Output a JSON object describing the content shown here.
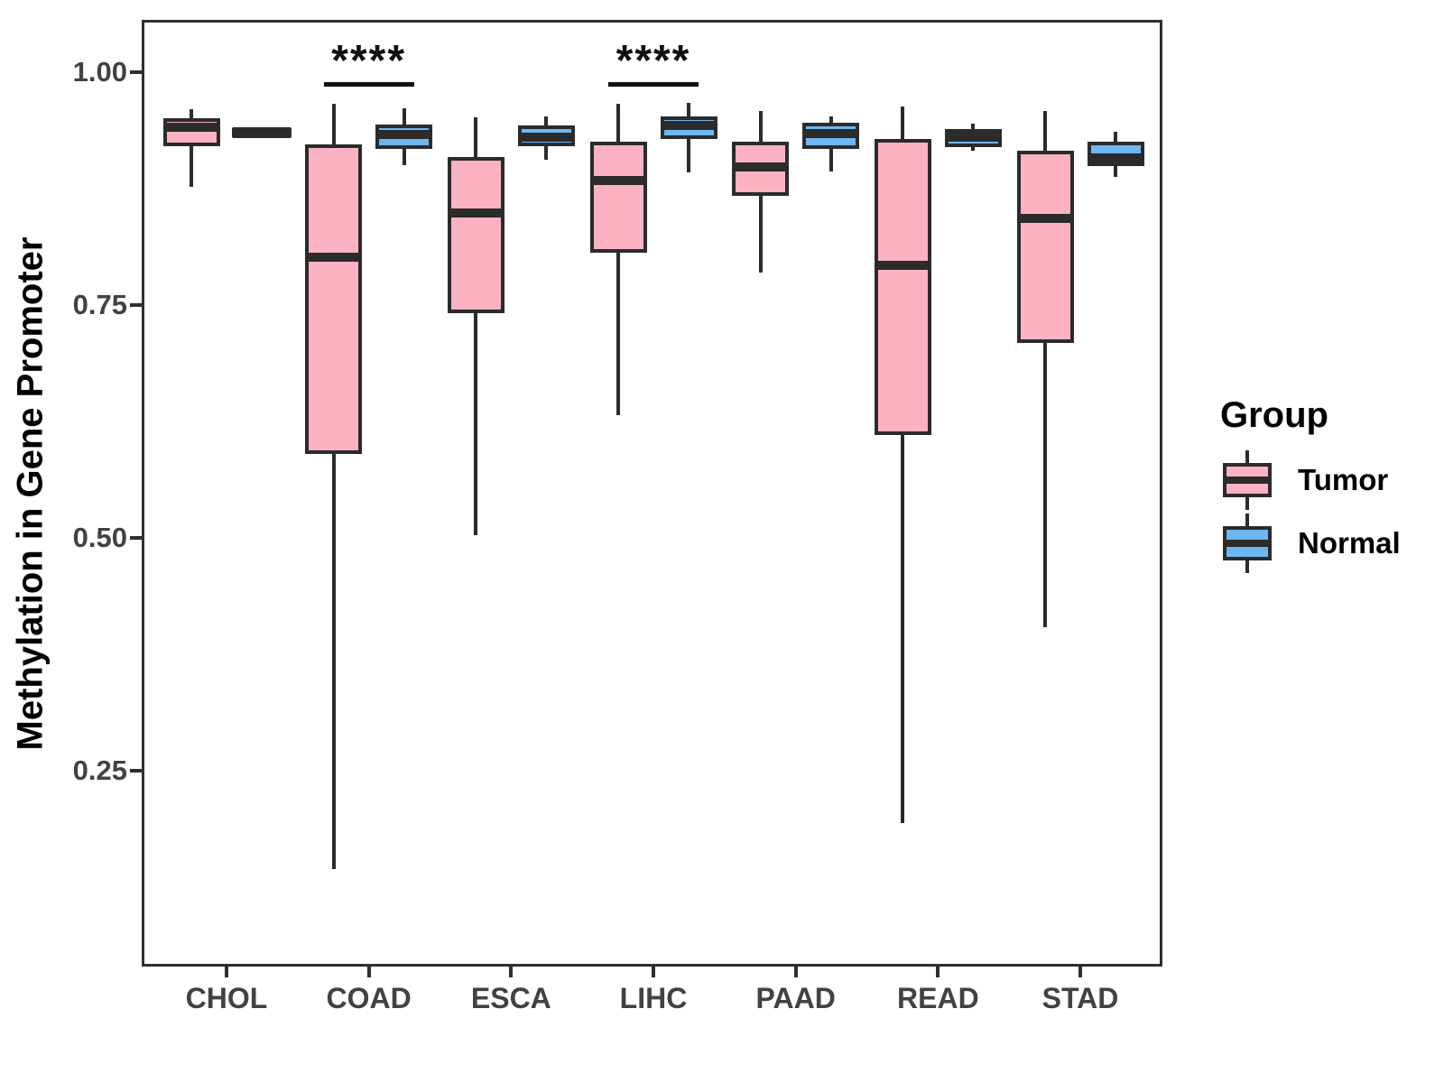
{
  "figure": {
    "background": "#ffffff"
  },
  "legend": {
    "title": "Group",
    "entries": [
      {
        "label": "Tumor",
        "color": "#FBB2C2"
      },
      {
        "label": "Normal",
        "color": "#6EB7F2"
      }
    ]
  },
  "chart_data": {
    "type": "boxplot",
    "title": "",
    "xlabel": "",
    "ylabel": "Methylation in Gene Promoter",
    "ylim": [
      0.03,
      1.06
    ],
    "grid": false,
    "legend_position": "right",
    "yticks": [
      {
        "label": "1.00",
        "value": 1.0
      },
      {
        "label": "0.75",
        "value": 0.75
      },
      {
        "label": "0.50",
        "value": 0.5
      },
      {
        "label": "0.25",
        "value": 0.25
      }
    ],
    "categories": [
      "CHOL",
      "COAD",
      "ESCA",
      "LIHC",
      "PAAD",
      "READ",
      "STAD"
    ],
    "groups": [
      "Tumor",
      "Normal"
    ],
    "colors": {
      "Tumor": "#FBB2C2",
      "Normal": "#6EB7F2",
      "stroke": "#2b2b2b"
    },
    "series": [
      {
        "name": "Tumor",
        "boxes": [
          {
            "category": "CHOL",
            "whisker_low": 0.877,
            "q1": 0.921,
            "median": 0.941,
            "q3": 0.951,
            "whisker_high": 0.96
          },
          {
            "category": "COAD",
            "whisker_low": 0.144,
            "q1": 0.59,
            "median": 0.801,
            "q3": 0.922,
            "whisker_high": 0.966
          },
          {
            "category": "ESCA",
            "whisker_low": 0.503,
            "q1": 0.741,
            "median": 0.849,
            "q3": 0.909,
            "whisker_high": 0.952
          },
          {
            "category": "LIHC",
            "whisker_low": 0.632,
            "q1": 0.806,
            "median": 0.884,
            "q3": 0.925,
            "whisker_high": 0.966
          },
          {
            "category": "PAAD",
            "whisker_low": 0.785,
            "q1": 0.867,
            "median": 0.898,
            "q3": 0.925,
            "whisker_high": 0.958
          },
          {
            "category": "READ",
            "whisker_low": 0.194,
            "q1": 0.61,
            "median": 0.793,
            "q3": 0.928,
            "whisker_high": 0.963
          },
          {
            "category": "STAD",
            "whisker_low": 0.404,
            "q1": 0.709,
            "median": 0.843,
            "q3": 0.916,
            "whisker_high": 0.958
          }
        ]
      },
      {
        "name": "Normal",
        "boxes": [
          {
            "category": "CHOL",
            "whisker_low": 0.935,
            "q1": 0.935,
            "median": 0.935,
            "q3": 0.935,
            "whisker_high": 0.935,
            "collapsed": true
          },
          {
            "category": "COAD",
            "whisker_low": 0.9,
            "q1": 0.918,
            "median": 0.933,
            "q3": 0.944,
            "whisker_high": 0.961
          },
          {
            "category": "ESCA",
            "whisker_low": 0.906,
            "q1": 0.921,
            "median": 0.93,
            "q3": 0.943,
            "whisker_high": 0.953
          },
          {
            "category": "LIHC",
            "whisker_low": 0.892,
            "q1": 0.928,
            "median": 0.943,
            "q3": 0.953,
            "whisker_high": 0.967
          },
          {
            "category": "PAAD",
            "whisker_low": 0.893,
            "q1": 0.918,
            "median": 0.934,
            "q3": 0.946,
            "whisker_high": 0.953
          },
          {
            "category": "READ",
            "whisker_low": 0.916,
            "q1": 0.92,
            "median": 0.93,
            "q3": 0.939,
            "whisker_high": 0.945
          },
          {
            "category": "STAD",
            "whisker_low": 0.888,
            "q1": 0.899,
            "median": 0.908,
            "q3": 0.925,
            "whisker_high": 0.936
          }
        ]
      }
    ],
    "annotations": [
      {
        "category": "COAD",
        "label": "****",
        "line_y": 0.987
      },
      {
        "category": "LIHC",
        "label": "****",
        "line_y": 0.987
      }
    ]
  }
}
